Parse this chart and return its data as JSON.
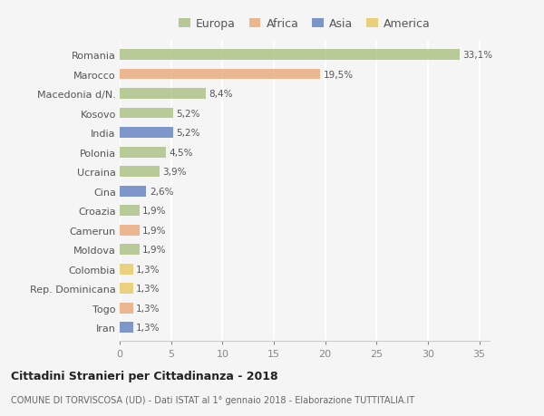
{
  "categories": [
    "Romania",
    "Marocco",
    "Macedonia d/N.",
    "Kosovo",
    "India",
    "Polonia",
    "Ucraina",
    "Cina",
    "Croazia",
    "Camerun",
    "Moldova",
    "Colombia",
    "Rep. Dominicana",
    "Togo",
    "Iran"
  ],
  "values": [
    33.1,
    19.5,
    8.4,
    5.2,
    5.2,
    4.5,
    3.9,
    2.6,
    1.9,
    1.9,
    1.9,
    1.3,
    1.3,
    1.3,
    1.3
  ],
  "labels": [
    "33,1%",
    "19,5%",
    "8,4%",
    "5,2%",
    "5,2%",
    "4,5%",
    "3,9%",
    "2,6%",
    "1,9%",
    "1,9%",
    "1,9%",
    "1,3%",
    "1,3%",
    "1,3%",
    "1,3%"
  ],
  "continents": [
    "Europa",
    "Africa",
    "Europa",
    "Europa",
    "Asia",
    "Europa",
    "Europa",
    "Asia",
    "Europa",
    "Africa",
    "Europa",
    "America",
    "America",
    "Africa",
    "Asia"
  ],
  "colors": {
    "Europa": "#a8c080",
    "Africa": "#e8a878",
    "Asia": "#6080c0",
    "America": "#e8c860"
  },
  "title": "Cittadini Stranieri per Cittadinanza - 2018",
  "subtitle": "COMUNE DI TORVISCOSA (UD) - Dati ISTAT al 1° gennaio 2018 - Elaborazione TUTTITALIA.IT",
  "xlim": [
    0,
    36
  ],
  "xticks": [
    0,
    5,
    10,
    15,
    20,
    25,
    30,
    35
  ],
  "background_color": "#f5f5f5",
  "grid_color": "#ffffff"
}
